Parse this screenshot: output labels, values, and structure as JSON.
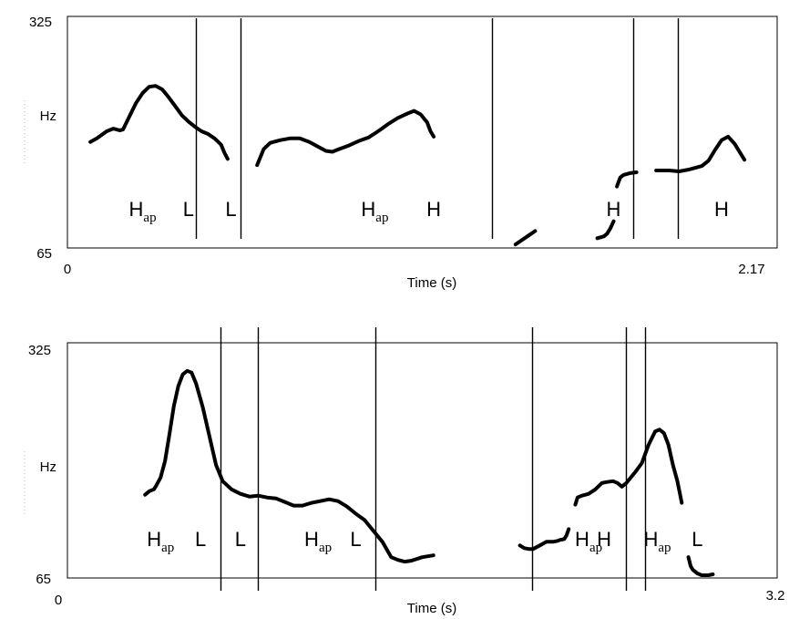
{
  "chart_data": [
    {
      "type": "line",
      "ylabel": "Hz",
      "xlabel": "Time (s)",
      "yticks": [
        "325",
        "65"
      ],
      "xticks": [
        "0",
        "2.17"
      ],
      "ylim": [
        65,
        325
      ],
      "xlim": [
        0,
        2.17
      ],
      "boundaries_s": [
        0.394,
        0.528,
        1.298,
        1.731,
        1.865
      ],
      "tone_labels": [
        {
          "text": "H",
          "sub": "ap",
          "t": 0.23
        },
        {
          "text": "L",
          "sub": "",
          "t": 0.37
        },
        {
          "text": "L",
          "sub": "",
          "t": 0.5
        },
        {
          "text": "H",
          "sub": "ap",
          "t": 0.94
        },
        {
          "text": "H",
          "sub": "",
          "t": 1.12
        },
        {
          "text": "H",
          "sub": "",
          "t": 1.67
        },
        {
          "text": "H",
          "sub": "",
          "t": 2.0
        }
      ],
      "series": [
        {
          "segments": [
            [
              [
                0.07,
                184
              ],
              [
                0.09,
                188
              ],
              [
                0.12,
                196
              ],
              [
                0.14,
                199
              ],
              [
                0.16,
                197
              ],
              [
                0.17,
                198
              ],
              [
                0.19,
                213
              ],
              [
                0.21,
                228
              ],
              [
                0.23,
                239
              ],
              [
                0.25,
                246
              ],
              [
                0.27,
                247
              ],
              [
                0.29,
                243
              ],
              [
                0.31,
                234
              ],
              [
                0.33,
                224
              ],
              [
                0.35,
                214
              ],
              [
                0.37,
                207
              ],
              [
                0.39,
                201
              ],
              [
                0.41,
                196
              ],
              [
                0.43,
                193
              ],
              [
                0.45,
                188
              ],
              [
                0.47,
                181
              ],
              [
                0.48,
                172
              ],
              [
                0.49,
                165
              ]
            ],
            [
              [
                0.58,
                158
              ],
              [
                0.59,
                167
              ],
              [
                0.6,
                176
              ],
              [
                0.62,
                183
              ],
              [
                0.65,
                186
              ],
              [
                0.68,
                188
              ],
              [
                0.71,
                188
              ],
              [
                0.74,
                184
              ],
              [
                0.77,
                178
              ],
              [
                0.79,
                174
              ],
              [
                0.81,
                173
              ],
              [
                0.83,
                176
              ],
              [
                0.86,
                180
              ],
              [
                0.89,
                185
              ],
              [
                0.92,
                189
              ],
              [
                0.95,
                196
              ],
              [
                0.98,
                204
              ],
              [
                1.01,
                211
              ],
              [
                1.04,
                216
              ],
              [
                1.06,
                219
              ],
              [
                1.08,
                215
              ],
              [
                1.1,
                206
              ],
              [
                1.11,
                196
              ],
              [
                1.12,
                190
              ]
            ],
            [
              [
                1.37,
                69
              ],
              [
                1.41,
                79
              ],
              [
                1.43,
                84
              ]
            ],
            [
              [
                1.62,
                76
              ],
              [
                1.64,
                78
              ],
              [
                1.65,
                81
              ],
              [
                1.66,
                87
              ],
              [
                1.67,
                95
              ]
            ],
            [
              [
                1.68,
                134
              ],
              [
                1.69,
                144
              ],
              [
                1.7,
                147
              ],
              [
                1.72,
                149
              ],
              [
                1.74,
                150
              ]
            ],
            [
              [
                1.8,
                152
              ],
              [
                1.84,
                152
              ],
              [
                1.87,
                151
              ],
              [
                1.9,
                153
              ],
              [
                1.94,
                157
              ],
              [
                1.96,
                163
              ],
              [
                1.98,
                175
              ],
              [
                2.0,
                186
              ],
              [
                2.02,
                190
              ],
              [
                2.04,
                182
              ],
              [
                2.06,
                170
              ],
              [
                2.07,
                164
              ]
            ]
          ]
        }
      ]
    },
    {
      "type": "line",
      "ylabel": "Hz",
      "xlabel": "Time (s)",
      "yticks": [
        "325",
        "65"
      ],
      "xticks": [
        "0",
        "3.2"
      ],
      "ylim": [
        65,
        325
      ],
      "xlim": [
        0,
        3.2
      ],
      "boundaries_s": [
        0.692,
        0.859,
        1.387,
        2.093,
        2.519,
        2.603
      ],
      "tone_labels": [
        {
          "text": "H",
          "sub": "ap",
          "t": 0.42
        },
        {
          "text": "L",
          "sub": "",
          "t": 0.6
        },
        {
          "text": "L",
          "sub": "",
          "t": 0.78
        },
        {
          "text": "H",
          "sub": "ap",
          "t": 1.13
        },
        {
          "text": "L",
          "sub": "",
          "t": 1.3
        },
        {
          "text": "H",
          "sub": "ap",
          "t": 2.35
        },
        {
          "text": "H",
          "sub": "",
          "t": 2.42
        },
        {
          "text": "H",
          "sub": "ap",
          "t": 2.66
        },
        {
          "text": "L",
          "sub": "",
          "t": 2.84
        }
      ],
      "series": [
        {
          "segments": [
            [
              [
                0.35,
                157
              ],
              [
                0.37,
                161
              ],
              [
                0.39,
                163
              ],
              [
                0.4,
                167
              ],
              [
                0.42,
                176
              ],
              [
                0.44,
                194
              ],
              [
                0.46,
                224
              ],
              [
                0.48,
                255
              ],
              [
                0.5,
                277
              ],
              [
                0.52,
                290
              ],
              [
                0.54,
                294
              ],
              [
                0.56,
                292
              ],
              [
                0.58,
                280
              ],
              [
                0.61,
                254
              ],
              [
                0.64,
                222
              ],
              [
                0.67,
                190
              ],
              [
                0.7,
                172
              ],
              [
                0.74,
                163
              ],
              [
                0.78,
                158
              ],
              [
                0.82,
                155
              ],
              [
                0.86,
                156
              ],
              [
                0.9,
                154
              ],
              [
                0.94,
                153
              ],
              [
                0.98,
                149
              ],
              [
                1.02,
                145
              ],
              [
                1.06,
                145
              ],
              [
                1.1,
                148
              ],
              [
                1.14,
                150
              ],
              [
                1.18,
                152
              ],
              [
                1.22,
                150
              ],
              [
                1.26,
                144
              ],
              [
                1.3,
                136
              ],
              [
                1.34,
                129
              ],
              [
                1.38,
                117
              ],
              [
                1.42,
                105
              ],
              [
                1.46,
                88
              ],
              [
                1.49,
                85
              ],
              [
                1.52,
                83
              ],
              [
                1.55,
                84
              ],
              [
                1.6,
                88
              ],
              [
                1.65,
                90
              ]
            ],
            [
              [
                2.04,
                101
              ],
              [
                2.06,
                98
              ],
              [
                2.08,
                97
              ],
              [
                2.1,
                97
              ],
              [
                2.13,
                101
              ],
              [
                2.16,
                105
              ],
              [
                2.19,
                105
              ],
              [
                2.21,
                106
              ],
              [
                2.22,
                107
              ],
              [
                2.24,
                108
              ],
              [
                2.25,
                112
              ],
              [
                2.26,
                119
              ]
            ],
            [
              [
                2.29,
                146
              ],
              [
                2.3,
                154
              ],
              [
                2.32,
                156
              ],
              [
                2.35,
                158
              ],
              [
                2.38,
                163
              ],
              [
                2.41,
                170
              ],
              [
                2.43,
                171
              ],
              [
                2.46,
                172
              ],
              [
                2.48,
                170
              ],
              [
                2.5,
                166
              ],
              [
                2.52,
                170
              ],
              [
                2.54,
                176
              ],
              [
                2.56,
                182
              ],
              [
                2.59,
                192
              ],
              [
                2.62,
                212
              ],
              [
                2.65,
                227
              ],
              [
                2.67,
                229
              ],
              [
                2.69,
                225
              ],
              [
                2.71,
                212
              ],
              [
                2.73,
                190
              ],
              [
                2.75,
                172
              ],
              [
                2.77,
                148
              ]
            ],
            [
              [
                2.8,
                88
              ],
              [
                2.81,
                78
              ],
              [
                2.82,
                74
              ],
              [
                2.84,
                70
              ],
              [
                2.86,
                68
              ],
              [
                2.89,
                68
              ],
              [
                2.91,
                69
              ]
            ]
          ]
        }
      ]
    }
  ]
}
